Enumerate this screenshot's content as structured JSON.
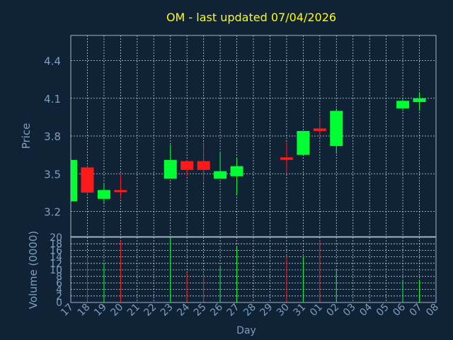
{
  "colors": {
    "background": "#0f2236",
    "axis": "#a0b4c8",
    "grid": "#c8d2dc",
    "up": "#00ff33",
    "down": "#ff1a1a",
    "title": "#ffff00",
    "label": "#7f9fbf"
  },
  "chart_data": {
    "type": "candlestick",
    "title": "OM - last updated 07/04/2026",
    "price_axis": {
      "label": "Price",
      "range": [
        3.0,
        4.6
      ],
      "ticks": [
        3.2,
        3.5,
        3.8,
        4.1,
        4.4
      ],
      "tick_labels": [
        "3.2",
        "3.5",
        "3.8",
        "4.1",
        "4.4"
      ],
      "grid": true
    },
    "volume_axis": {
      "label": "Volume (0000)",
      "range": [
        0,
        20
      ],
      "ticks": [
        0,
        2,
        4,
        6,
        8,
        10,
        12,
        14,
        16,
        18,
        20
      ],
      "tick_labels": [
        "0",
        "2",
        "4",
        "6",
        "8",
        "10",
        "12",
        "14",
        "16",
        "18",
        "20"
      ],
      "grid": true
    },
    "x_axis": {
      "label": "Day",
      "tick_labels": [
        "17",
        "18",
        "19",
        "20",
        "21",
        "22",
        "23",
        "24",
        "25",
        "26",
        "27",
        "28",
        "29",
        "30",
        "31",
        "01",
        "02",
        "03",
        "04",
        "05",
        "06",
        "07",
        "08"
      ]
    },
    "candles": [
      {
        "day": "17",
        "open": 3.28,
        "high": 3.62,
        "low": 3.27,
        "close": 3.61,
        "volume": 16
      },
      {
        "day": "18",
        "open": 3.55,
        "high": 3.56,
        "low": 3.33,
        "close": 3.35,
        "volume": 14
      },
      {
        "day": "19",
        "open": 3.3,
        "high": 3.42,
        "low": 3.27,
        "close": 3.37,
        "volume": 12
      },
      {
        "day": "20",
        "open": 3.37,
        "high": 3.5,
        "low": 3.3,
        "close": 3.36,
        "volume": 19
      },
      {
        "day": "23",
        "open": 3.46,
        "high": 3.73,
        "low": 3.46,
        "close": 3.61,
        "volume": 20
      },
      {
        "day": "24",
        "open": 3.6,
        "high": 3.61,
        "low": 3.48,
        "close": 3.53,
        "volume": 9
      },
      {
        "day": "25",
        "open": 3.6,
        "high": 3.74,
        "low": 3.43,
        "close": 3.53,
        "volume": 8
      },
      {
        "day": "26",
        "open": 3.46,
        "high": 3.67,
        "low": 3.46,
        "close": 3.52,
        "volume": 11
      },
      {
        "day": "27",
        "open": 3.48,
        "high": 3.62,
        "low": 3.33,
        "close": 3.56,
        "volume": 17
      },
      {
        "day": "30",
        "open": 3.63,
        "high": 3.75,
        "low": 3.51,
        "close": 3.61,
        "volume": 14
      },
      {
        "day": "31",
        "open": 3.65,
        "high": 3.84,
        "low": 3.65,
        "close": 3.84,
        "volume": 14
      },
      {
        "day": "01",
        "open": 3.86,
        "high": 3.95,
        "low": 3.79,
        "close": 3.84,
        "volume": 19
      },
      {
        "day": "02",
        "open": 3.72,
        "high": 4.02,
        "low": 3.66,
        "close": 4.0,
        "volume": 10
      },
      {
        "day": "06",
        "open": 4.02,
        "high": 4.09,
        "low": 4.0,
        "close": 4.08,
        "volume": 7
      },
      {
        "day": "07",
        "open": 4.07,
        "high": 4.15,
        "low": 4.0,
        "close": 4.1,
        "volume": 7
      }
    ]
  }
}
